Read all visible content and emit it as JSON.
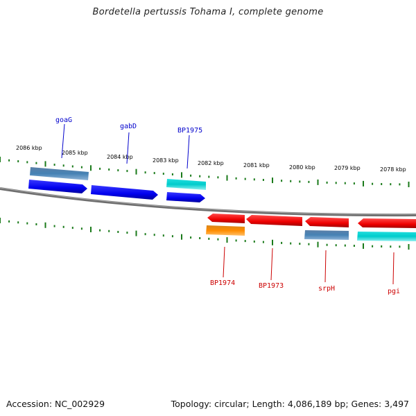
{
  "title": "Bordetella pertussis Tohama I, complete genome",
  "footer": {
    "accession_label": "Accession: NC_002929",
    "topology_label": "Topology: circular; Length: 4,086,189 bp; Genes: 3,497"
  },
  "kbp_ticks": [
    "2086 kbp",
    "2085 kbp",
    "2084 kbp",
    "2083 kbp",
    "2082 kbp",
    "2081 kbp",
    "2080 kbp",
    "2079 kbp",
    "2078 kbp"
  ],
  "genes_upper": [
    {
      "name": "goaG",
      "color": "#0000cc"
    },
    {
      "name": "gabD",
      "color": "#0000cc"
    },
    {
      "name": "BP1975",
      "color": "#0000cc"
    }
  ],
  "genes_lower": [
    {
      "name": "BP1974",
      "color": "#cc0000"
    },
    {
      "name": "BP1973",
      "color": "#cc0000"
    },
    {
      "name": "srpH",
      "color": "#cc0000"
    },
    {
      "name": "pgi",
      "color": "#cc0000"
    }
  ],
  "colors": {
    "forward_cds": "#0000ee",
    "reverse_cds": "#ee0000",
    "steelblue_gene": "#4682b4",
    "cyan_gene": "#00cccc",
    "orange_gene": "#ff8c00",
    "backbone": "#777777",
    "tick_green": "#1a7a1a"
  }
}
